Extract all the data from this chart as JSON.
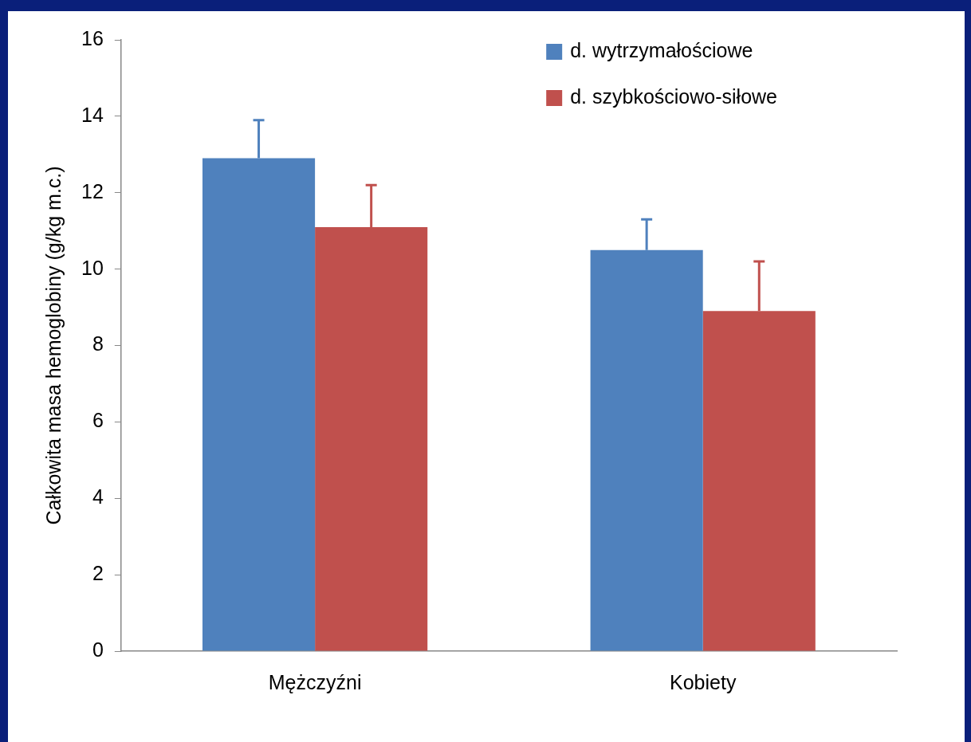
{
  "chart_data": {
    "type": "bar",
    "ylabel": "Całkowita masa hemoglobiny (g/kg m.c.)",
    "categories": [
      "Mężczyźni",
      "Kobiety"
    ],
    "series": [
      {
        "name": "d. wytrzymałościowe",
        "color": "#4f81bd",
        "values": [
          12.9,
          10.5
        ],
        "errors": [
          [
            12.9,
            13.9
          ],
          [
            10.5,
            11.3
          ]
        ]
      },
      {
        "name": "d. szybkościowo-siłowe",
        "color": "#c0504d",
        "values": [
          11.1,
          8.9
        ],
        "errors": [
          [
            11.1,
            12.2
          ],
          [
            8.9,
            10.2
          ]
        ]
      }
    ],
    "ylim": [
      0,
      16
    ],
    "yticks": [
      0,
      2,
      4,
      6,
      8,
      10,
      12,
      14,
      16
    ],
    "grid": false,
    "legend": "top right"
  }
}
